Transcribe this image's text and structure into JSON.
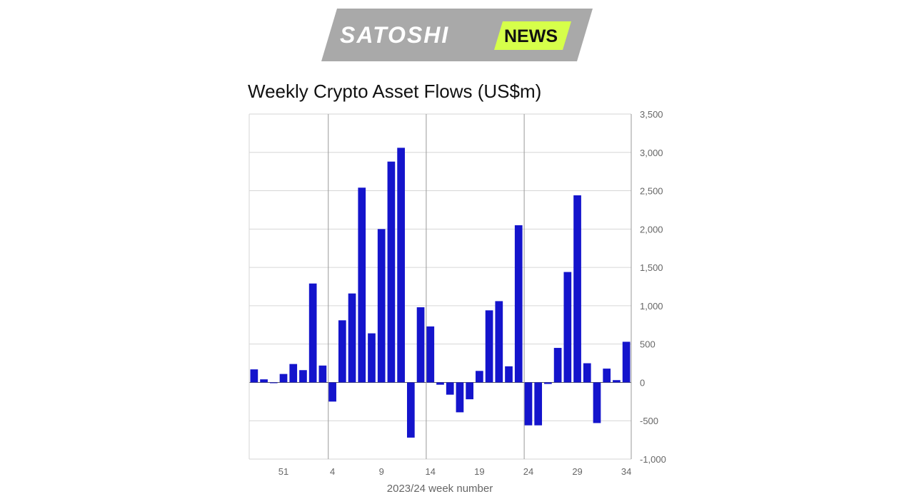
{
  "logo": {
    "brand": "SATOSHI",
    "badge": "NEWS",
    "badge_color": "#d6ff4a",
    "plate_color": "#a9a9a9"
  },
  "chart_data": {
    "type": "bar",
    "title": "Weekly Crypto Asset Flows (US$m)",
    "xlabel": "2023/24 week number",
    "ylabel": "",
    "ylim": [
      -1000,
      3500
    ],
    "yticks": [
      -1000,
      -500,
      0,
      500,
      1000,
      1500,
      2000,
      2500,
      3000,
      3500
    ],
    "ytick_labels": [
      "-1,000",
      "-500",
      "0",
      "500",
      "1,000",
      "1,500",
      "2,000",
      "2,500",
      "3,000",
      "3,500"
    ],
    "y_axis_side": "right",
    "grid": true,
    "bar_color": "#1414cc",
    "categories": [
      "48",
      "49",
      "50",
      "51",
      "52",
      "1",
      "2",
      "3",
      "4",
      "5",
      "6",
      "7",
      "8",
      "9",
      "10",
      "11",
      "12",
      "13",
      "14",
      "15",
      "16",
      "17",
      "18",
      "19",
      "20",
      "21",
      "22",
      "23",
      "24",
      "25",
      "26",
      "27",
      "28",
      "29",
      "30",
      "31",
      "32",
      "33",
      "34"
    ],
    "values": [
      170,
      40,
      -10,
      110,
      240,
      160,
      1290,
      220,
      -250,
      810,
      1160,
      2540,
      640,
      2000,
      2880,
      3060,
      -720,
      980,
      730,
      -30,
      -160,
      -390,
      -220,
      150,
      940,
      1060,
      210,
      2050,
      -560,
      -560,
      -20,
      450,
      1440,
      2440,
      250,
      -530,
      180,
      30,
      530
    ],
    "xticks": [
      "51",
      "4",
      "9",
      "14",
      "19",
      "24",
      "29",
      "34"
    ],
    "xticks_at": [
      "51",
      "4",
      "9",
      "14",
      "19",
      "24",
      "29",
      "34"
    ],
    "vertical_gridlines_at": [
      "4",
      "14",
      "24"
    ]
  }
}
